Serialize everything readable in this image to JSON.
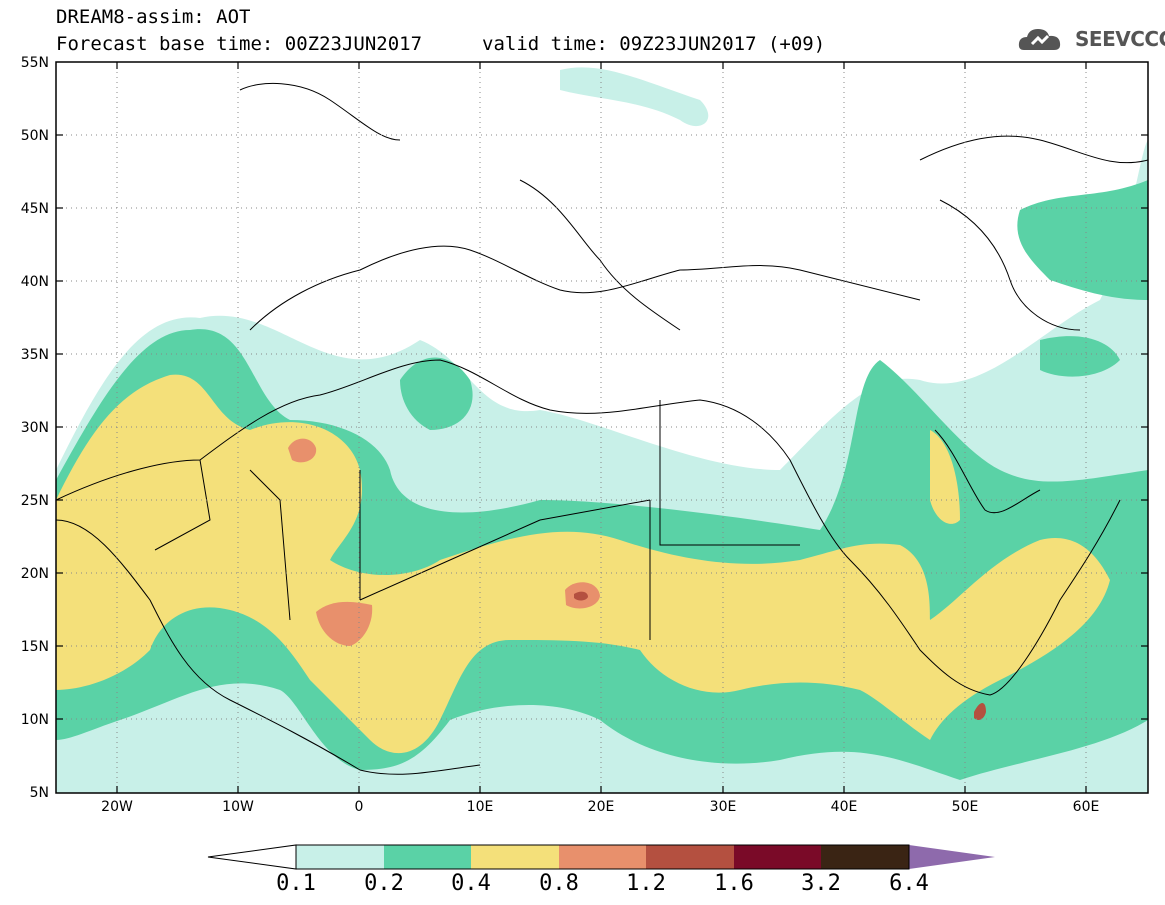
{
  "header": {
    "line1": "DREAM8-assim: AOT",
    "line2": "Forecast base time: 00Z23JUN2017",
    "line3": "valid time: 09Z23JUN2017 (+09)"
  },
  "logo": {
    "name": "cloud-icon",
    "text": "SEEVCCC"
  },
  "axes": {
    "lat_labels": [
      "55N",
      "50N",
      "45N",
      "40N",
      "35N",
      "30N",
      "25N",
      "20N",
      "15N",
      "10N",
      "5N"
    ],
    "lon_labels": [
      "20W",
      "10W",
      "0",
      "10E",
      "20E",
      "30E",
      "40E",
      "50E",
      "60E"
    ]
  },
  "legend": {
    "colors": [
      "#c8f0e8",
      "#5ad2a6",
      "#f4e07a",
      "#e8906c",
      "#b45040",
      "#7a0a28",
      "#3a2414",
      "#8e6aac"
    ],
    "labels": [
      "0.1",
      "0.2",
      "0.4",
      "0.8",
      "1.2",
      "1.6",
      "3.2",
      "6.4"
    ]
  }
}
